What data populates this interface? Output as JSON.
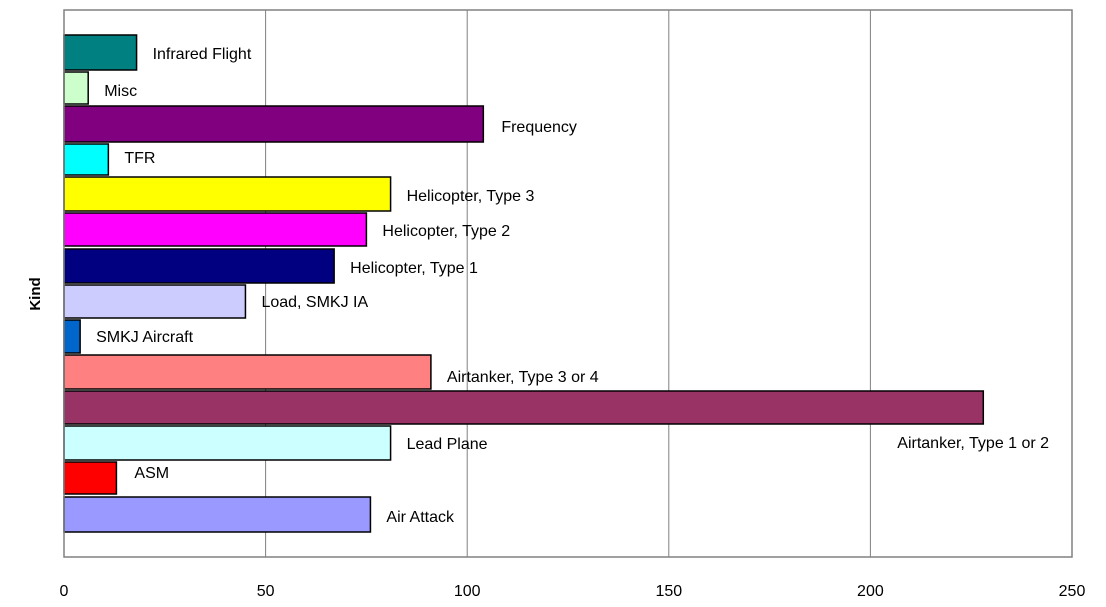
{
  "chart_data": {
    "type": "bar",
    "orientation": "horizontal",
    "title": "",
    "xlabel": "",
    "ylabel": "Kind",
    "xlim": [
      0,
      250
    ],
    "xticks": [
      0,
      50,
      100,
      150,
      200,
      250
    ],
    "grid": "vertical",
    "legend": "none",
    "bars": [
      {
        "label": "Infrared Flight",
        "value": 18,
        "color": "#008080"
      },
      {
        "label": "Misc",
        "value": 6,
        "color": "#CCFFCC"
      },
      {
        "label": "Frequency",
        "value": 104,
        "color": "#800080"
      },
      {
        "label": "TFR",
        "value": 11,
        "color": "#00FFFF"
      },
      {
        "label": "Helicopter, Type 3",
        "value": 81,
        "color": "#FFFF00"
      },
      {
        "label": "Helicopter, Type 2",
        "value": 75,
        "color": "#FF00FF"
      },
      {
        "label": "Helicopter, Type 1",
        "value": 67,
        "color": "#000080"
      },
      {
        "label": "Load, SMKJ IA",
        "value": 45,
        "color": "#CCCCFF"
      },
      {
        "label": "SMKJ Aircraft",
        "value": 4,
        "color": "#0066CC"
      },
      {
        "label": "Airtanker, Type 3 or 4",
        "value": 91,
        "color": "#FF8080"
      },
      {
        "label": "Airtanker, Type 1 or 2",
        "value": 228,
        "color": "#993366"
      },
      {
        "label": "Lead Plane",
        "value": 81,
        "color": "#CCFFFF"
      },
      {
        "label": "ASM",
        "value": 13,
        "color": "#FF0000"
      },
      {
        "label": "Air Attack",
        "value": 76,
        "color": "#9999FF"
      }
    ]
  }
}
